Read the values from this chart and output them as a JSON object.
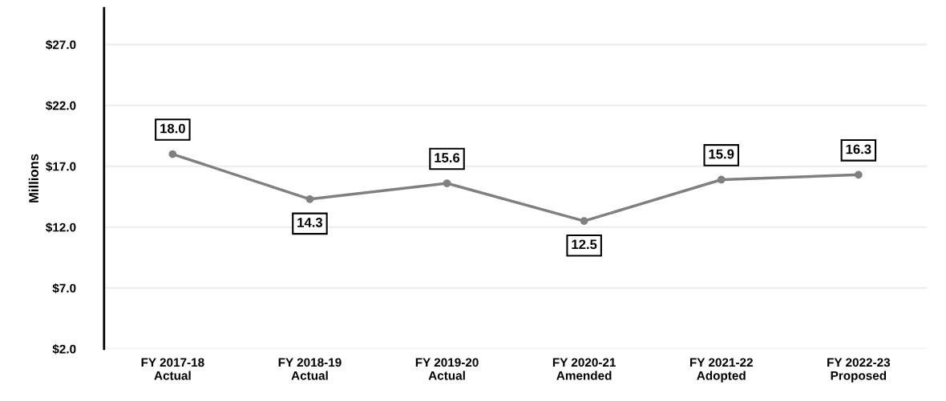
{
  "chart_data": {
    "type": "line",
    "ylabel": "Millions",
    "categories": [
      "FY 2017-18\nActual",
      "FY 2018-19\nActual",
      "FY 2019-20\nActual",
      "FY 2020-21\nAmended",
      "FY 2021-22\nAdopted",
      "FY 2022-23\nProposed"
    ],
    "series": [
      {
        "color": "#808080",
        "values": [
          18.0,
          14.3,
          15.6,
          12.5,
          15.9,
          16.3
        ],
        "value_labels": [
          "18.0",
          "14.3",
          "15.6",
          "12.5",
          "15.9",
          "16.3"
        ]
      }
    ],
    "ylim": [
      2,
      30
    ],
    "yticks": [
      {
        "value": 2,
        "label": "$2.0"
      },
      {
        "value": 7,
        "label": "$7.0"
      },
      {
        "value": 12,
        "label": "$12.0"
      },
      {
        "value": 17,
        "label": "$17.0"
      },
      {
        "value": 22,
        "label": "$22.0"
      },
      {
        "value": 27,
        "label": "$27.0"
      }
    ],
    "grid": "y",
    "marker": "circle",
    "line_style": "solid",
    "legend": false
  }
}
